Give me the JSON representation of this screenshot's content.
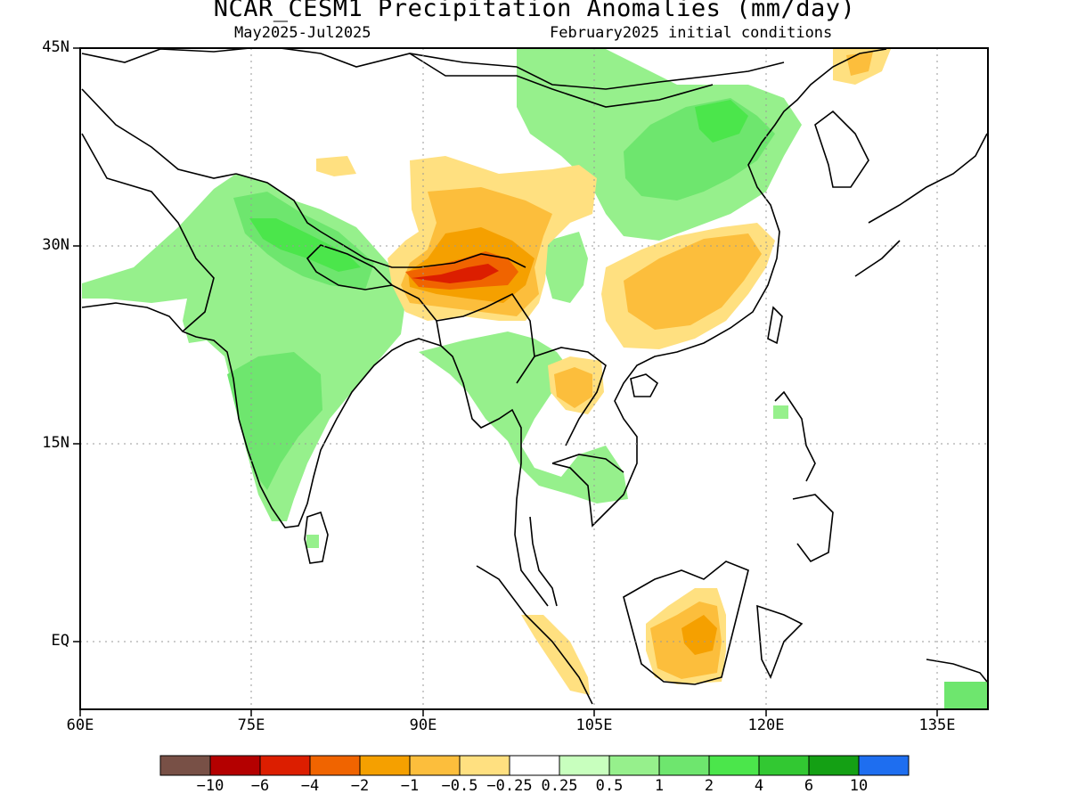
{
  "title": "NCAR_CESM1 Precipitation Anomalies (mm/day)",
  "subtitle_left": "May2025-Jul2025",
  "subtitle_right": "February2025 initial conditions",
  "lat_labels": [
    "45N",
    "30N",
    "15N",
    "EQ"
  ],
  "lon_labels": [
    "60E",
    "75E",
    "90E",
    "105E",
    "120E",
    "135E"
  ],
  "colorbar": {
    "colors": [
      "#785046",
      "#b40000",
      "#dc1e00",
      "#f06400",
      "#f5a000",
      "#fcbe3c",
      "#ffe080",
      "#ffffff",
      "#c8ffbe",
      "#96f08c",
      "#6ee66e",
      "#4be64b",
      "#32c832",
      "#14a014",
      "#1e6ef0"
    ],
    "labels": [
      "−10",
      "−6",
      "−4",
      "−2",
      "−1",
      "−0.5",
      "−0.25",
      "0.25",
      "0.5",
      "1",
      "2",
      "4",
      "6",
      "10"
    ]
  }
}
